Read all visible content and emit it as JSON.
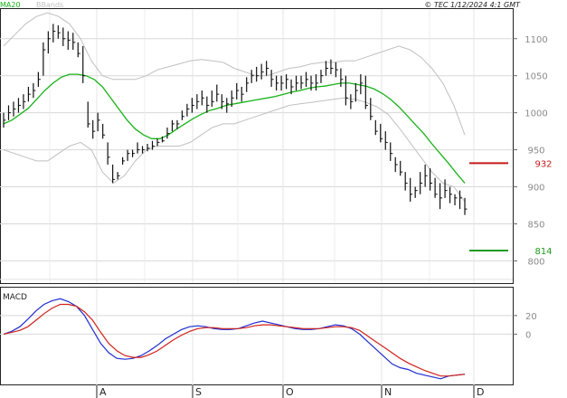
{
  "header": {
    "copyright": "© TEC 1/12/2024 4:1 GMT"
  },
  "legend": {
    "ma_label": "MA20",
    "ma_color": "#19b219",
    "bb_label": "BBands",
    "bb_color": "#c0c0c0"
  },
  "chart_data": [
    {
      "type": "candlestick",
      "title": "",
      "price_ylim": [
        770,
        1140
      ],
      "y_ticks": [
        "1100",
        "1050",
        "1000",
        "950",
        "900",
        "850",
        "800"
      ],
      "x_ticks": [
        "A",
        "S",
        "O",
        "N",
        "D"
      ],
      "grid": true,
      "series": [
        {
          "name": "Price",
          "high": [
            1000,
            1010,
            1015,
            1020,
            1025,
            1035,
            1040,
            1055,
            1095,
            1110,
            1120,
            1118,
            1115,
            1110,
            1108,
            1095,
            1090,
            1015,
            990,
            1000,
            985,
            960,
            930,
            920,
            940,
            950,
            950,
            960,
            955,
            958,
            962,
            965,
            968,
            980,
            990,
            990,
            1003,
            1012,
            1020,
            1025,
            1030,
            1022,
            1030,
            1038,
            1025,
            1020,
            1030,
            1040,
            1035,
            1048,
            1058,
            1062,
            1066,
            1070,
            1058,
            1050,
            1050,
            1052,
            1045,
            1050,
            1050,
            1055,
            1050,
            1052,
            1058,
            1070,
            1072,
            1068,
            1060,
            1050,
            1025,
            1040,
            1052,
            1050,
            1020,
            990,
            985,
            975,
            960,
            940,
            935,
            920,
            912,
            900,
            920,
            930,
            925,
            912,
            905,
            910,
            900,
            890,
            895,
            885
          ],
          "low": [
            980,
            990,
            995,
            1000,
            1005,
            1015,
            1020,
            1035,
            1050,
            1080,
            1095,
            1100,
            1090,
            1085,
            1085,
            1075,
            1040,
            980,
            965,
            975,
            965,
            930,
            905,
            910,
            930,
            935,
            940,
            945,
            945,
            948,
            950,
            955,
            960,
            965,
            975,
            978,
            990,
            995,
            1000,
            1005,
            1010,
            1000,
            1008,
            1015,
            1005,
            1000,
            1008,
            1018,
            1015,
            1028,
            1040,
            1042,
            1045,
            1050,
            1035,
            1030,
            1030,
            1032,
            1025,
            1030,
            1032,
            1035,
            1030,
            1030,
            1040,
            1050,
            1052,
            1048,
            1035,
            1010,
            1005,
            1015,
            1025,
            1005,
            990,
            970,
            960,
            950,
            935,
            920,
            915,
            895,
            880,
            885,
            890,
            900,
            895,
            885,
            870,
            885,
            878,
            875,
            870,
            862
          ],
          "close": [
            990,
            1000,
            1005,
            1010,
            1015,
            1025,
            1030,
            1045,
            1085,
            1100,
            1110,
            1108,
            1100,
            1098,
            1095,
            1080,
            1050,
            985,
            975,
            990,
            970,
            940,
            910,
            915,
            935,
            945,
            945,
            950,
            950,
            952,
            955,
            960,
            962,
            972,
            985,
            985,
            995,
            1005,
            1010,
            1015,
            1020,
            1010,
            1015,
            1025,
            1015,
            1012,
            1020,
            1030,
            1025,
            1040,
            1050,
            1050,
            1055,
            1060,
            1045,
            1040,
            1040,
            1045,
            1035,
            1040,
            1040,
            1045,
            1040,
            1040,
            1050,
            1060,
            1060,
            1058,
            1045,
            1020,
            1015,
            1030,
            1040,
            1010,
            995,
            975,
            965,
            960,
            945,
            930,
            920,
            905,
            890,
            895,
            905,
            915,
            905,
            890,
            885,
            895,
            890,
            885,
            885,
            870
          ]
        },
        {
          "name": "MA20",
          "values": [
            985,
            990,
            998,
            1006,
            1018,
            1030,
            1040,
            1048,
            1052,
            1052,
            1050,
            1045,
            1035,
            1020,
            1005,
            990,
            978,
            970,
            965,
            965,
            970,
            978,
            985,
            992,
            998,
            1003,
            1006,
            1010,
            1012,
            1014,
            1016,
            1018,
            1020,
            1022,
            1025,
            1028,
            1030,
            1033,
            1035,
            1036,
            1038,
            1040,
            1040,
            1038,
            1036,
            1032,
            1026,
            1018,
            1008,
            996,
            984,
            972,
            958,
            945,
            932,
            918,
            905
          ]
        },
        {
          "name": "BBands",
          "upper": [
            1090,
            1105,
            1120,
            1130,
            1135,
            1130,
            1120,
            1100,
            1070,
            1050,
            1045,
            1045,
            1045,
            1050,
            1058,
            1062,
            1066,
            1070,
            1072,
            1070,
            1068,
            1060,
            1055,
            1050,
            1050,
            1055,
            1060,
            1062,
            1066,
            1068,
            1068,
            1070,
            1070,
            1075,
            1080,
            1085,
            1090,
            1085,
            1075,
            1060,
            1040,
            1010,
            970
          ],
          "lower": [
            950,
            945,
            940,
            935,
            935,
            945,
            955,
            960,
            950,
            920,
            905,
            915,
            935,
            950,
            955,
            955,
            955,
            960,
            970,
            980,
            985,
            985,
            990,
            995,
            1000,
            1005,
            1010,
            1012,
            1014,
            1016,
            1018,
            1020,
            1018,
            1014,
            1008,
            998,
            980,
            960,
            940,
            920,
            905,
            900,
            880
          ]
        }
      ]
    },
    {
      "type": "line",
      "title": "MACD",
      "y_ticks": [
        "20",
        "0"
      ],
      "series": [
        {
          "name": "MACD",
          "color": "#1f2dcf",
          "values": [
            0,
            3,
            8,
            16,
            25,
            32,
            36,
            38,
            35,
            30,
            20,
            5,
            -10,
            -20,
            -26,
            -27,
            -26,
            -23,
            -18,
            -12,
            -5,
            0,
            5,
            8,
            9,
            8,
            6,
            5,
            5,
            6,
            9,
            12,
            14,
            12,
            10,
            8,
            6,
            5,
            5,
            6,
            8,
            10,
            9,
            6,
            0,
            -8,
            -16,
            -24,
            -32,
            -36,
            -38,
            -42,
            -44,
            -46,
            -48,
            -45,
            -44,
            -43
          ]
        },
        {
          "name": "Signal",
          "color": "#d0211b",
          "values": [
            0,
            2,
            4,
            8,
            15,
            22,
            28,
            32,
            32,
            30,
            24,
            15,
            2,
            -10,
            -18,
            -23,
            -25,
            -25,
            -22,
            -18,
            -12,
            -6,
            -1,
            3,
            6,
            7,
            7,
            6,
            6,
            6,
            7,
            9,
            10,
            10,
            9,
            8,
            7,
            6,
            6,
            6,
            7,
            8,
            8,
            7,
            4,
            -2,
            -8,
            -14,
            -20,
            -26,
            -31,
            -35,
            -39,
            -42,
            -45,
            -45,
            -44,
            -43
          ]
        }
      ]
    }
  ],
  "markers": [
    {
      "label": "932",
      "value": 932,
      "color": "#c51b1b"
    },
    {
      "label": "814",
      "value": 814,
      "color": "#1f9a1f"
    }
  ]
}
